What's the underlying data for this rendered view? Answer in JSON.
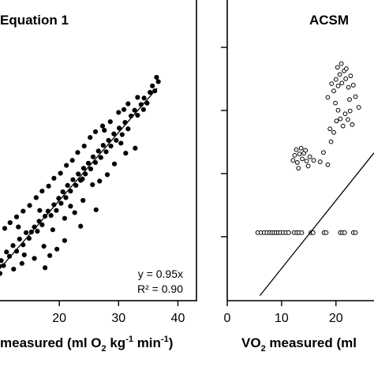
{
  "chart_data": [
    {
      "type": "scatter",
      "title": "Equation 1",
      "xlabel_main": "measured (ml O",
      "xlabel_sub1": "2",
      "xlabel_mid": " kg",
      "xlabel_sup1": "-1",
      "xlabel_mid2": " min",
      "xlabel_sup2": "-1",
      "xlabel_end": ")",
      "xlim": [
        10,
        43
      ],
      "ylim": [
        5,
        47
      ],
      "x_ticks": [
        20,
        30,
        40
      ],
      "y_ticks": [],
      "annotation_lines": [
        "y = 0.95x",
        "R² = 0.90"
      ],
      "marker": "filled-circle",
      "fit_line": {
        "slope": 0.95,
        "x_range": [
          8,
          36.5
        ]
      },
      "points": [
        [
          8.3,
          8.5
        ],
        [
          8.7,
          9.2
        ],
        [
          9.2,
          8.4
        ],
        [
          9.6,
          10.1
        ],
        [
          9.9,
          9.8
        ],
        [
          10.2,
          10.6
        ],
        [
          10.6,
          9.9
        ],
        [
          11.1,
          11.8
        ],
        [
          11.6,
          11.2
        ],
        [
          12.2,
          12.7
        ],
        [
          12.8,
          11.9
        ],
        [
          13.3,
          13.6
        ],
        [
          13.9,
          12.8
        ],
        [
          14.4,
          14.5
        ],
        [
          14.9,
          13.7
        ],
        [
          15.3,
          14.6
        ],
        [
          15.8,
          15.3
        ],
        [
          16.3,
          14.7
        ],
        [
          16.6,
          16.1
        ],
        [
          17.1,
          15.6
        ],
        [
          17.6,
          16.8
        ],
        [
          18.1,
          17.5
        ],
        [
          18.6,
          16.9
        ],
        [
          19.1,
          18.4
        ],
        [
          19.5,
          17.6
        ],
        [
          19.9,
          19.3
        ],
        [
          20.3,
          18.6
        ],
        [
          20.6,
          20.2
        ],
        [
          21.1,
          19.4
        ],
        [
          21.4,
          21.1
        ],
        [
          21.9,
          20.3
        ],
        [
          22.3,
          21.9
        ],
        [
          22.8,
          21.1
        ],
        [
          23.2,
          22.7
        ],
        [
          23.6,
          21.8
        ],
        [
          24.1,
          23.5
        ],
        [
          24.4,
          22.7
        ],
        [
          24.9,
          24.2
        ],
        [
          25.3,
          23.4
        ],
        [
          25.7,
          25.1
        ],
        [
          26.1,
          24.3
        ],
        [
          26.6,
          25.9
        ],
        [
          27.0,
          25.0
        ],
        [
          27.4,
          26.7
        ],
        [
          27.9,
          25.8
        ],
        [
          28.3,
          27.4
        ],
        [
          28.7,
          26.6
        ],
        [
          29.2,
          28.3
        ],
        [
          29.6,
          27.4
        ],
        [
          30.1,
          29.1
        ],
        [
          30.6,
          28.2
        ],
        [
          31.1,
          29.9
        ],
        [
          31.6,
          29.0
        ],
        [
          32.1,
          30.8
        ],
        [
          32.7,
          31.6
        ],
        [
          33.2,
          30.9
        ],
        [
          33.8,
          32.4
        ],
        [
          34.3,
          33.3
        ],
        [
          34.8,
          32.6
        ],
        [
          35.3,
          34.1
        ],
        [
          35.7,
          35.0
        ],
        [
          36.1,
          34.3
        ],
        [
          36.4,
          36.2
        ],
        [
          36.7,
          35.6
        ],
        [
          33.2,
          33.4
        ],
        [
          31.6,
          32.5
        ],
        [
          30.0,
          31.3
        ],
        [
          28.6,
          30.0
        ],
        [
          27.3,
          29.4
        ],
        [
          26.1,
          28.6
        ],
        [
          25.2,
          27.8
        ],
        [
          24.2,
          26.6
        ],
        [
          23.1,
          25.7
        ],
        [
          22.2,
          24.6
        ],
        [
          21.2,
          23.9
        ],
        [
          20.2,
          22.8
        ],
        [
          19.1,
          22.1
        ],
        [
          18.2,
          21.0
        ],
        [
          17.1,
          20.3
        ],
        [
          16.1,
          19.4
        ],
        [
          15.0,
          18.3
        ],
        [
          13.9,
          17.5
        ],
        [
          12.8,
          16.7
        ],
        [
          11.7,
          15.9
        ],
        [
          10.8,
          15.1
        ],
        [
          20.9,
          16.5
        ],
        [
          24.0,
          19.0
        ],
        [
          26.8,
          21.7
        ],
        [
          29.3,
          24.1
        ],
        [
          31.2,
          25.6
        ],
        [
          32.8,
          26.3
        ],
        [
          28.1,
          22.6
        ],
        [
          22.6,
          17.3
        ],
        [
          25.6,
          21.2
        ],
        [
          30.4,
          27.0
        ],
        [
          14.1,
          11.4
        ],
        [
          15.8,
          10.9
        ],
        [
          17.4,
          12.6
        ],
        [
          18.9,
          14.9
        ],
        [
          19.6,
          12.2
        ],
        [
          13.1,
          15.3
        ],
        [
          16.7,
          17.6
        ],
        [
          21.9,
          18.2
        ],
        [
          23.9,
          22.0
        ],
        [
          27.6,
          28.8
        ],
        [
          30.9,
          31.7
        ],
        [
          34.2,
          31.7
        ],
        [
          12.3,
          9.4
        ],
        [
          13.7,
          10.2
        ],
        [
          18.4,
          11.3
        ],
        [
          9.0,
          13.0
        ],
        [
          9.5,
          12.2
        ],
        [
          10.0,
          8.8
        ],
        [
          17.6,
          9.6
        ],
        [
          20.9,
          13.4
        ],
        [
          23.6,
          15.4
        ],
        [
          26.2,
          17.7
        ]
      ]
    },
    {
      "type": "scatter",
      "title": "ACSM",
      "xlabel_main": "VO",
      "xlabel_sub1": "2",
      "xlabel_mid": " measured (ml",
      "xlim": [
        0,
        27
      ],
      "ylim": [
        5,
        47
      ],
      "x_ticks": [
        0,
        10,
        20
      ],
      "y_ticks": [],
      "marker": "open-circle",
      "fit_line": {
        "slope": 0.95,
        "x_range": [
          6,
          27
        ]
      },
      "points": [
        [
          5.6,
          14.5
        ],
        [
          6.2,
          14.5
        ],
        [
          6.8,
          14.5
        ],
        [
          7.3,
          14.5
        ],
        [
          7.8,
          14.5
        ],
        [
          8.2,
          14.5
        ],
        [
          8.6,
          14.5
        ],
        [
          9.0,
          14.5
        ],
        [
          9.4,
          14.5
        ],
        [
          9.8,
          14.5
        ],
        [
          10.3,
          14.5
        ],
        [
          10.8,
          14.5
        ],
        [
          11.3,
          14.5
        ],
        [
          12.3,
          14.5
        ],
        [
          12.8,
          14.5
        ],
        [
          13.2,
          14.5
        ],
        [
          13.7,
          14.5
        ],
        [
          15.4,
          14.5
        ],
        [
          15.8,
          14.5
        ],
        [
          17.8,
          14.5
        ],
        [
          18.2,
          14.5
        ],
        [
          20.8,
          14.5
        ],
        [
          21.2,
          14.5
        ],
        [
          21.6,
          14.5
        ],
        [
          23.2,
          14.5
        ],
        [
          23.6,
          14.5
        ],
        [
          12.1,
          24.6
        ],
        [
          12.4,
          25.3
        ],
        [
          12.9,
          24.3
        ],
        [
          13.3,
          25.5
        ],
        [
          13.8,
          24.8
        ],
        [
          14.1,
          25.6
        ],
        [
          14.6,
          24.5
        ],
        [
          15.2,
          25.1
        ],
        [
          12.7,
          26.1
        ],
        [
          13.6,
          26.3
        ],
        [
          14.4,
          26.0
        ],
        [
          13.1,
          23.5
        ],
        [
          14.9,
          23.8
        ],
        [
          15.9,
          24.6
        ],
        [
          17.1,
          24.4
        ],
        [
          17.7,
          25.7
        ],
        [
          18.5,
          24.0
        ],
        [
          19.1,
          27.2
        ],
        [
          18.9,
          29.0
        ],
        [
          19.6,
          28.5
        ],
        [
          20.1,
          30.1
        ],
        [
          20.4,
          31.6
        ],
        [
          20.8,
          30.4
        ],
        [
          21.3,
          29.4
        ],
        [
          21.7,
          31.1
        ],
        [
          22.2,
          30.3
        ],
        [
          22.6,
          31.5
        ],
        [
          23.0,
          29.6
        ],
        [
          19.6,
          34.3
        ],
        [
          20.0,
          35.9
        ],
        [
          20.4,
          35.0
        ],
        [
          20.7,
          36.6
        ],
        [
          21.1,
          35.4
        ],
        [
          21.5,
          37.1
        ],
        [
          21.8,
          36.0
        ],
        [
          22.3,
          34.8
        ],
        [
          22.7,
          36.4
        ],
        [
          23.2,
          35.1
        ],
        [
          19.2,
          35.3
        ],
        [
          23.6,
          33.5
        ],
        [
          21.0,
          38.1
        ],
        [
          20.3,
          37.6
        ],
        [
          21.9,
          37.4
        ],
        [
          18.5,
          33.4
        ],
        [
          19.9,
          32.6
        ],
        [
          22.5,
          33.1
        ],
        [
          24.2,
          32.0
        ]
      ]
    }
  ]
}
